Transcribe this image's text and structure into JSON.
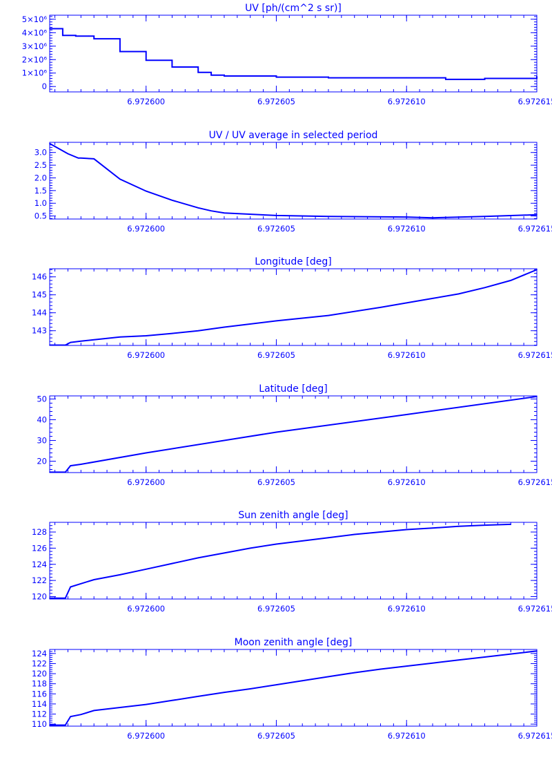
{
  "color": "#0000ff",
  "x_tick_labels": [
    "6.972600",
    "6.972605",
    "6.972610",
    "6.972615"
  ],
  "x_tick_values": [
    6.9726,
    6.972605,
    6.97261,
    6.972615
  ],
  "chart_data": [
    {
      "type": "line",
      "title": "UV [ph/(cm^2 s sr)]",
      "xlim": [
        6.9725963,
        6.972615
      ],
      "ylim": [
        -400000,
        5300000
      ],
      "ytick_values": [
        0,
        1000000,
        2000000,
        3000000,
        4000000,
        5000000
      ],
      "ytick_labels": [
        "0",
        "1×10⁶",
        "2×10⁶",
        "3×10⁶",
        "4×10⁶",
        "5×10⁶"
      ],
      "step": true,
      "x": [
        6.9725963,
        6.9725968,
        6.9725973,
        6.9725978,
        6.972598,
        6.972599,
        6.9726,
        6.972601,
        6.972602,
        6.9726025,
        6.972603,
        6.972605,
        6.972607,
        6.97261,
        6.9726115,
        6.972613,
        6.972615
      ],
      "values": [
        4300000,
        3800000,
        3750000,
        3750000,
        3550000,
        2600000,
        1950000,
        1450000,
        1050000,
        850000,
        780000,
        700000,
        650000,
        650000,
        530000,
        600000,
        750000
      ]
    },
    {
      "type": "line",
      "title": "UV / UV average in selected period",
      "xlim": [
        6.9725963,
        6.972615
      ],
      "ylim": [
        0.38,
        3.4
      ],
      "ytick_values": [
        0.5,
        1,
        1.5,
        2,
        2.5,
        3
      ],
      "ytick_labels": [
        "0.5",
        "1.0",
        "1.5",
        "2.0",
        "2.5",
        "3.0"
      ],
      "x": [
        6.9725963,
        6.972597,
        6.9725974,
        6.9725975,
        6.972598,
        6.972599,
        6.9726,
        6.972601,
        6.972602,
        6.9726025,
        6.972603,
        6.972605,
        6.972607,
        6.97261,
        6.972611,
        6.972613,
        6.972615
      ],
      "values": [
        3.35,
        2.95,
        2.78,
        2.78,
        2.75,
        1.95,
        1.48,
        1.12,
        0.82,
        0.7,
        0.62,
        0.52,
        0.48,
        0.46,
        0.43,
        0.48,
        0.55
      ]
    },
    {
      "type": "line",
      "title": "Longitude [deg]",
      "xlim": [
        6.9725963,
        6.972615
      ],
      "ylim": [
        142.18,
        146.45
      ],
      "ytick_values": [
        143,
        144,
        145,
        146
      ],
      "ytick_labels": [
        "143",
        "144",
        "145",
        "146"
      ],
      "x": [
        6.9725963,
        6.9725969,
        6.9725971,
        6.9725975,
        6.972598,
        6.972599,
        6.9726,
        6.972601,
        6.972602,
        6.972603,
        6.972605,
        6.972607,
        6.972609,
        6.97261,
        6.972611,
        6.972612,
        6.972613,
        6.972614,
        6.972615
      ],
      "values": [
        142.2,
        142.2,
        142.35,
        142.42,
        142.5,
        142.65,
        142.72,
        142.85,
        143.0,
        143.2,
        143.55,
        143.85,
        144.3,
        144.55,
        144.8,
        145.05,
        145.4,
        145.8,
        146.4
      ]
    },
    {
      "type": "line",
      "title": "Latitude [deg]",
      "xlim": [
        6.9725963,
        6.972615
      ],
      "ylim": [
        14.5,
        51.5
      ],
      "ytick_values": [
        20,
        30,
        40,
        50
      ],
      "ytick_labels": [
        "20",
        "30",
        "40",
        "50"
      ],
      "x": [
        6.9725963,
        6.9725969,
        6.9725971,
        6.9725975,
        6.9726,
        6.972605,
        6.97261,
        6.972615
      ],
      "values": [
        14.7,
        14.7,
        17.8,
        18.5,
        24.0,
        34.0,
        42.5,
        51.2
      ]
    },
    {
      "type": "line",
      "title": "Sun zenith angle [deg]",
      "xlim": [
        6.9725963,
        6.972615
      ],
      "ylim": [
        119.7,
        129.2
      ],
      "ytick_values": [
        120,
        122,
        124,
        126,
        128
      ],
      "ytick_labels": [
        "120",
        "122",
        "124",
        "126",
        "128"
      ],
      "x": [
        6.9725963,
        6.9725969,
        6.9725971,
        6.9725975,
        6.972598,
        6.972599,
        6.9726,
        6.972601,
        6.972602,
        6.972603,
        6.972604,
        6.972605,
        6.972606,
        6.972607,
        6.972608,
        6.972609,
        6.97261,
        6.972611,
        6.972612,
        6.972613,
        6.972614
      ],
      "values": [
        119.8,
        119.8,
        121.2,
        121.6,
        122.1,
        122.7,
        123.4,
        124.1,
        124.8,
        125.4,
        126.0,
        126.5,
        126.9,
        127.3,
        127.7,
        128.0,
        128.3,
        128.5,
        128.7,
        128.85,
        128.95
      ]
    },
    {
      "type": "line",
      "title": "Moon zenith angle [deg]",
      "xlim": [
        6.9725963,
        6.972615
      ],
      "ylim": [
        109.6,
        124.8
      ],
      "ytick_values": [
        110,
        112,
        114,
        116,
        118,
        120,
        122,
        124
      ],
      "ytick_labels": [
        "110",
        "112",
        "114",
        "116",
        "118",
        "120",
        "122",
        "124"
      ],
      "x": [
        6.9725963,
        6.9725969,
        6.9725971,
        6.9725975,
        6.972598,
        6.972599,
        6.9726,
        6.972601,
        6.972602,
        6.972603,
        6.972604,
        6.972605,
        6.972606,
        6.972607,
        6.972608,
        6.972609,
        6.97261,
        6.972611,
        6.972612,
        6.972613,
        6.972614,
        6.972615
      ],
      "values": [
        109.8,
        109.8,
        111.5,
        111.9,
        112.7,
        113.3,
        113.9,
        114.7,
        115.5,
        116.3,
        117.0,
        117.8,
        118.6,
        119.4,
        120.2,
        120.9,
        121.5,
        122.1,
        122.7,
        123.3,
        123.9,
        124.5
      ]
    }
  ]
}
